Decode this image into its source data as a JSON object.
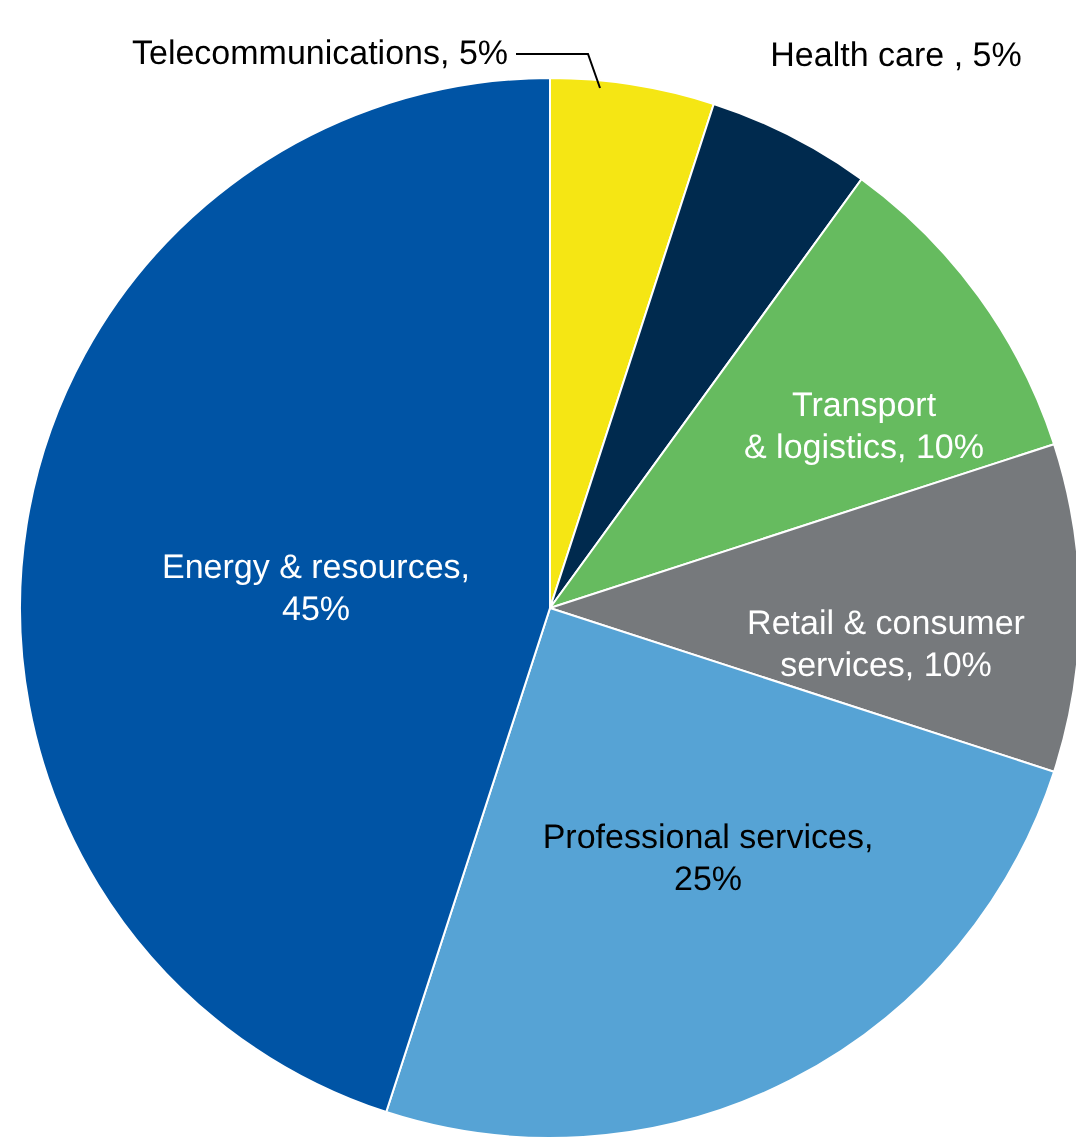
{
  "chart_data": {
    "type": "pie",
    "categories": [
      "Telecommunications, 5%",
      "Health care , 5%",
      "Transport & logistics, 10%",
      "Retail & consumer services, 10%",
      "Professional services, 25%",
      "Energy & resources, 45%"
    ],
    "values": [
      5,
      5,
      10,
      10,
      25,
      45
    ],
    "colors": [
      "#f5e614",
      "#002a4e",
      "#66bb5f",
      "#76797c",
      "#56a3d5",
      "#0054a5"
    ]
  }
}
